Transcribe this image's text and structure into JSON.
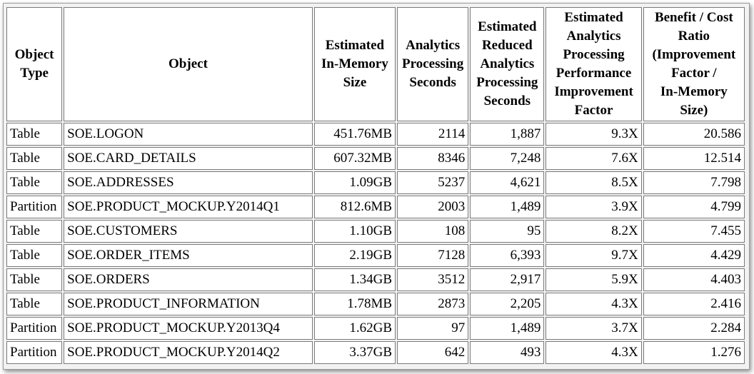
{
  "table": {
    "headers": [
      {
        "key": "type",
        "lines": [
          "Object",
          "Type"
        ]
      },
      {
        "key": "object",
        "lines": [
          "Object"
        ]
      },
      {
        "key": "size",
        "lines": [
          "Estimated",
          "In-Memory",
          "Size"
        ]
      },
      {
        "key": "seconds",
        "lines": [
          "Analytics",
          "Processing",
          "Seconds"
        ]
      },
      {
        "key": "reduced",
        "lines": [
          "Estimated",
          "Reduced",
          "Analytics",
          "Processing",
          "Seconds"
        ]
      },
      {
        "key": "factor",
        "lines": [
          "Estimated",
          "Analytics",
          "Processing",
          "Performance",
          "Improvement",
          "Factor"
        ]
      },
      {
        "key": "ratio",
        "lines": [
          "Benefit / Cost",
          "Ratio",
          "(Improvement",
          "Factor /",
          "In-Memory",
          "Size)"
        ]
      }
    ],
    "rows": [
      {
        "type": "Table",
        "object": "SOE.LOGON",
        "size": "451.76MB",
        "seconds": "2114",
        "reduced": "1,887",
        "factor": "9.3X",
        "ratio": "20.586"
      },
      {
        "type": "Table",
        "object": "SOE.CARD_DETAILS",
        "size": "607.32MB",
        "seconds": "8346",
        "reduced": "7,248",
        "factor": "7.6X",
        "ratio": "12.514"
      },
      {
        "type": "Table",
        "object": "SOE.ADDRESSES",
        "size": "1.09GB",
        "seconds": "5237",
        "reduced": "4,621",
        "factor": "8.5X",
        "ratio": "7.798"
      },
      {
        "type": "Partition",
        "object": "SOE.PRODUCT_MOCKUP.Y2014Q1",
        "size": "812.6MB",
        "seconds": "2003",
        "reduced": "1,489",
        "factor": "3.9X",
        "ratio": "4.799"
      },
      {
        "type": "Table",
        "object": "SOE.CUSTOMERS",
        "size": "1.10GB",
        "seconds": "108",
        "reduced": "95",
        "factor": "8.2X",
        "ratio": "7.455"
      },
      {
        "type": "Table",
        "object": "SOE.ORDER_ITEMS",
        "size": "2.19GB",
        "seconds": "7128",
        "reduced": "6,393",
        "factor": "9.7X",
        "ratio": "4.429"
      },
      {
        "type": "Table",
        "object": "SOE.ORDERS",
        "size": "1.34GB",
        "seconds": "3512",
        "reduced": "2,917",
        "factor": "5.9X",
        "ratio": "4.403"
      },
      {
        "type": "Table",
        "object": "SOE.PRODUCT_INFORMATION",
        "size": "1.78MB",
        "seconds": "2873",
        "reduced": "2,205",
        "factor": "4.3X",
        "ratio": "2.416"
      },
      {
        "type": "Partition",
        "object": "SOE.PRODUCT_MOCKUP.Y2013Q4",
        "size": "1.62GB",
        "seconds": "97",
        "reduced": "1,489",
        "factor": "3.7X",
        "ratio": "2.284"
      },
      {
        "type": "Partition",
        "object": "SOE.PRODUCT_MOCKUP.Y2014Q2",
        "size": "3.37GB",
        "seconds": "642",
        "reduced": "493",
        "factor": "4.3X",
        "ratio": "1.276"
      }
    ]
  }
}
